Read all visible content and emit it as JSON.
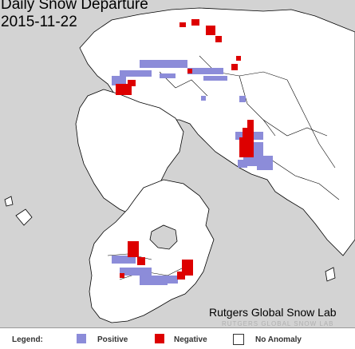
{
  "header": {
    "title": "Daily Snow Departure",
    "date": "2015-11-22"
  },
  "credit": "Rutgers Global Snow Lab",
  "watermark": "RUTGERS GLOBAL SNOW LAB",
  "legend": {
    "title": "Legend:",
    "items": [
      {
        "label": "Positive",
        "color": "#8c8cd9"
      },
      {
        "label": "Negative",
        "color": "#dd0000"
      },
      {
        "label": "No Anomaly",
        "color": "#ffffff"
      }
    ]
  },
  "colors": {
    "ocean": "#d3d3d3",
    "land": "#ffffff",
    "border": "#000000"
  }
}
